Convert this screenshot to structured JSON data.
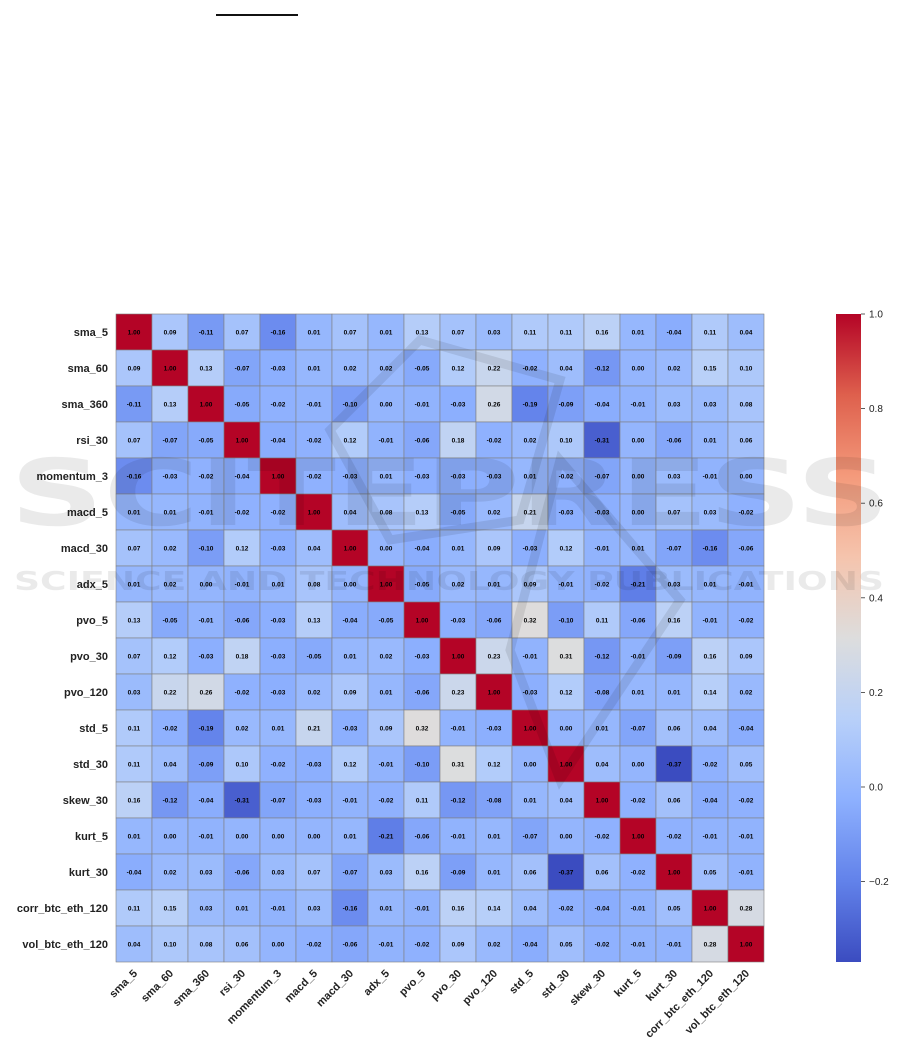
{
  "chart_data": {
    "type": "heatmap",
    "title": "",
    "xlabel": "",
    "ylabel": "",
    "labels": [
      "sma_5",
      "sma_60",
      "sma_360",
      "rsi_30",
      "momentum_3",
      "macd_5",
      "macd_30",
      "adx_5",
      "pvo_5",
      "pvo_30",
      "pvo_120",
      "std_5",
      "std_30",
      "skew_30",
      "kurt_5",
      "kurt_30",
      "corr_btc_eth_120",
      "vol_btc_eth_120"
    ],
    "matrix": [
      [
        1.0,
        0.09,
        -0.11,
        0.07,
        -0.16,
        0.01,
        0.07,
        0.01,
        0.13,
        0.07,
        0.03,
        0.11,
        0.11,
        0.16,
        0.01,
        -0.04,
        0.11,
        0.04
      ],
      [
        0.09,
        1.0,
        0.13,
        -0.07,
        -0.03,
        0.01,
        0.02,
        0.02,
        -0.05,
        0.12,
        0.22,
        -0.02,
        0.04,
        -0.12,
        0.0,
        0.02,
        0.15,
        0.1
      ],
      [
        -0.11,
        0.13,
        1.0,
        -0.05,
        -0.02,
        -0.01,
        -0.1,
        0.0,
        -0.01,
        -0.03,
        0.26,
        -0.19,
        -0.09,
        -0.04,
        -0.01,
        0.03,
        0.03,
        0.08
      ],
      [
        0.07,
        -0.07,
        -0.05,
        1.0,
        -0.04,
        -0.02,
        0.12,
        -0.01,
        -0.06,
        0.18,
        -0.02,
        0.02,
        0.1,
        -0.31,
        -0.0,
        -0.06,
        0.01,
        0.06
      ],
      [
        -0.16,
        -0.03,
        -0.02,
        -0.04,
        1.0,
        -0.02,
        -0.03,
        0.01,
        -0.03,
        -0.03,
        -0.03,
        0.01,
        -0.02,
        -0.07,
        -0.0,
        0.03,
        -0.01,
        0.0
      ],
      [
        0.01,
        0.01,
        -0.01,
        -0.02,
        -0.02,
        1.0,
        0.04,
        0.08,
        0.13,
        -0.05,
        0.02,
        0.21,
        -0.03,
        -0.03,
        0.0,
        0.07,
        0.03,
        -0.02
      ],
      [
        0.07,
        0.02,
        -0.1,
        0.12,
        -0.03,
        0.04,
        1.0,
        0.0,
        -0.04,
        0.01,
        0.09,
        -0.03,
        0.12,
        -0.01,
        0.01,
        -0.07,
        -0.16,
        -0.06
      ],
      [
        0.01,
        0.02,
        0.0,
        -0.01,
        0.01,
        0.08,
        0.0,
        1.0,
        -0.05,
        0.02,
        0.01,
        0.09,
        -0.01,
        -0.02,
        -0.21,
        0.03,
        0.01,
        -0.01
      ],
      [
        0.13,
        -0.05,
        -0.01,
        -0.06,
        -0.03,
        0.13,
        -0.04,
        -0.05,
        1.0,
        -0.03,
        -0.06,
        0.32,
        -0.1,
        0.11,
        -0.06,
        0.16,
        -0.01,
        -0.02
      ],
      [
        0.07,
        0.12,
        -0.03,
        0.18,
        -0.03,
        -0.05,
        0.01,
        0.02,
        -0.03,
        1.0,
        0.23,
        -0.01,
        0.31,
        -0.12,
        -0.01,
        -0.09,
        0.16,
        0.09
      ],
      [
        0.03,
        0.22,
        0.26,
        -0.02,
        -0.03,
        0.02,
        0.09,
        0.01,
        -0.06,
        0.23,
        1.0,
        -0.03,
        0.12,
        -0.08,
        0.01,
        0.01,
        0.14,
        0.02
      ],
      [
        0.11,
        -0.02,
        -0.19,
        0.02,
        0.01,
        0.21,
        -0.03,
        0.09,
        0.32,
        -0.01,
        -0.03,
        1.0,
        0.0,
        0.01,
        -0.07,
        0.06,
        0.04,
        -0.04
      ],
      [
        0.11,
        0.04,
        -0.09,
        0.1,
        -0.02,
        -0.03,
        0.12,
        -0.01,
        -0.1,
        0.31,
        0.12,
        0.0,
        1.0,
        0.04,
        -0.0,
        -0.37,
        -0.02,
        0.05
      ],
      [
        0.16,
        -0.12,
        -0.04,
        -0.31,
        -0.07,
        -0.03,
        -0.01,
        -0.02,
        0.11,
        -0.12,
        -0.08,
        0.01,
        0.04,
        1.0,
        -0.02,
        0.06,
        -0.04,
        -0.02
      ],
      [
        0.01,
        0.0,
        -0.01,
        -0.0,
        -0.0,
        0.0,
        0.01,
        -0.21,
        -0.06,
        -0.01,
        0.01,
        -0.07,
        -0.0,
        -0.02,
        1.0,
        -0.02,
        -0.01,
        -0.01
      ],
      [
        -0.04,
        0.02,
        0.03,
        -0.06,
        0.03,
        0.07,
        -0.07,
        0.03,
        0.16,
        -0.09,
        0.01,
        0.06,
        -0.37,
        0.06,
        -0.02,
        1.0,
        0.05,
        -0.01
      ],
      [
        0.11,
        0.15,
        0.03,
        0.01,
        -0.01,
        0.03,
        -0.16,
        0.01,
        -0.01,
        0.16,
        0.14,
        0.04,
        -0.02,
        -0.04,
        -0.01,
        0.05,
        1.0,
        0.28
      ],
      [
        0.04,
        0.1,
        0.08,
        0.06,
        0.0,
        -0.02,
        -0.06,
        -0.01,
        -0.02,
        0.09,
        0.02,
        -0.04,
        0.05,
        -0.02,
        -0.01,
        -0.01,
        0.28,
        1.0
      ]
    ],
    "value_format": "2 decimals",
    "colormap": "coolwarm",
    "vmin": -0.37,
    "vmax": 1.0,
    "colorbar_ticks": [
      "1.0",
      "0.8",
      "0.6",
      "0.4",
      "0.2",
      "0.0",
      "−0.2"
    ],
    "colorbar_tick_values": [
      1.0,
      0.8,
      0.6,
      0.4,
      0.2,
      0.0,
      -0.2
    ],
    "grid_lines": true,
    "legend": "colorbar-right"
  },
  "colors": {
    "cold": "#3b4cc0",
    "neutral": "#dddddd",
    "hot": "#b40426",
    "grid": "#7f7f7f"
  }
}
